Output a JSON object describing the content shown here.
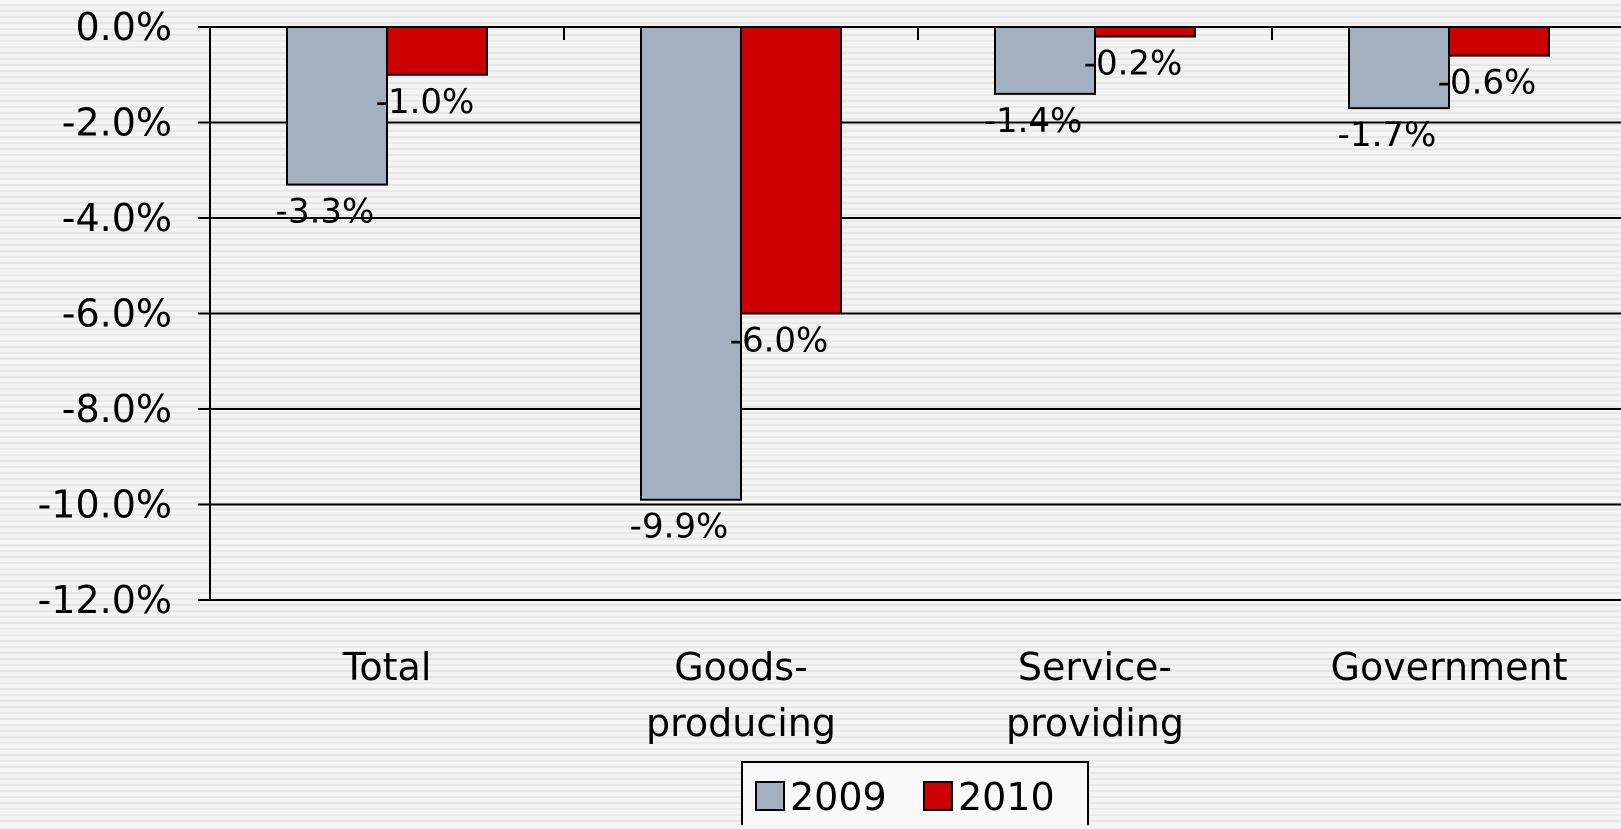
{
  "chart_data": {
    "type": "bar",
    "title": "",
    "xlabel": "",
    "ylabel": "",
    "categories": [
      [
        "Total"
      ],
      [
        "Goods-",
        "producing"
      ],
      [
        "Service-",
        "providing"
      ],
      [
        "Government"
      ]
    ],
    "series": [
      {
        "name": "2009",
        "values": [
          -3.3,
          -9.9,
          -1.4,
          -1.7
        ],
        "labels": [
          "-3.3%",
          "-9.9%",
          "-1.4%",
          "-1.7%"
        ]
      },
      {
        "name": "2010",
        "values": [
          -1.0,
          -6.0,
          -0.2,
          -0.6
        ],
        "labels": [
          "-1.0%",
          "-6.0%",
          "-0.2%",
          "-0.6%"
        ]
      }
    ],
    "ylim": [
      -12.0,
      0.0
    ],
    "yticks": [
      {
        "value": 0,
        "label": "0.0%"
      },
      {
        "value": -2,
        "label": "-2.0%"
      },
      {
        "value": -4,
        "label": "-4.0%"
      },
      {
        "value": -6,
        "label": "-6.0%"
      },
      {
        "value": -8,
        "label": "-8.0%"
      },
      {
        "value": -10,
        "label": "-10.0%"
      },
      {
        "value": -12,
        "label": "-12.0%"
      }
    ],
    "grid": true,
    "legend": "bottom",
    "colors": [
      "#a2b0c0",
      "#cc0000"
    ]
  }
}
